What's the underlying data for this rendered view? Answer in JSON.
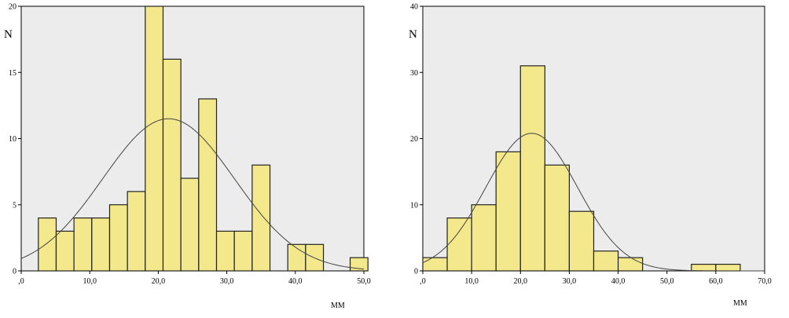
{
  "colors": {
    "bar_fill": "#f3e88c",
    "bar_stroke": "#222222",
    "plot_background": "#ececec",
    "axis": "#000000",
    "curve": "#444444"
  },
  "chart_data": [
    {
      "type": "bar",
      "ylabel": "N",
      "xlabel": "MM",
      "xlim": [
        0,
        50
      ],
      "ylim": [
        0,
        20
      ],
      "x_ticks": [
        0,
        10,
        20,
        30,
        40,
        50
      ],
      "x_tick_labels": [
        ",0",
        "10,0",
        "20,0",
        "30,0",
        "40,0",
        "50,0"
      ],
      "y_ticks": [
        0,
        5,
        10,
        15,
        20
      ],
      "y_tick_labels": [
        "0",
        "5",
        "10",
        "15",
        "20"
      ],
      "bin_width": 2.6,
      "bins": [
        {
          "start": 2.5,
          "count": 4
        },
        {
          "start": 5.1,
          "count": 3
        },
        {
          "start": 7.7,
          "count": 4
        },
        {
          "start": 10.3,
          "count": 4
        },
        {
          "start": 12.9,
          "count": 5
        },
        {
          "start": 15.5,
          "count": 6
        },
        {
          "start": 18.1,
          "count": 20
        },
        {
          "start": 20.7,
          "count": 16
        },
        {
          "start": 23.3,
          "count": 7
        },
        {
          "start": 25.9,
          "count": 13
        },
        {
          "start": 28.5,
          "count": 3
        },
        {
          "start": 31.1,
          "count": 3
        },
        {
          "start": 33.7,
          "count": 8
        },
        {
          "start": 38.9,
          "count": 2
        },
        {
          "start": 41.5,
          "count": 2
        },
        {
          "start": 48.0,
          "count": 1
        }
      ],
      "normal_curve": {
        "mean": 21.5,
        "peak": 11.5,
        "sd": 9.6
      },
      "grid": false
    },
    {
      "type": "bar",
      "ylabel": "N",
      "xlabel": "MM",
      "xlim": [
        0,
        70
      ],
      "ylim": [
        0,
        40
      ],
      "x_ticks": [
        0,
        10,
        20,
        30,
        40,
        50,
        60,
        70
      ],
      "x_tick_labels": [
        ",0",
        "10,0",
        "20,0",
        "30,0",
        "40,0",
        "50,0",
        "60,0",
        "70,0"
      ],
      "y_ticks": [
        0,
        10,
        20,
        30,
        40
      ],
      "y_tick_labels": [
        "0",
        "10",
        "20",
        "30",
        "40"
      ],
      "bin_width": 5,
      "bins": [
        {
          "start": 0,
          "count": 2
        },
        {
          "start": 5,
          "count": 8
        },
        {
          "start": 10,
          "count": 10
        },
        {
          "start": 15,
          "count": 18
        },
        {
          "start": 20,
          "count": 31
        },
        {
          "start": 25,
          "count": 16
        },
        {
          "start": 30,
          "count": 9
        },
        {
          "start": 35,
          "count": 3
        },
        {
          "start": 40,
          "count": 2
        },
        {
          "start": 55,
          "count": 1
        },
        {
          "start": 60,
          "count": 1
        }
      ],
      "normal_curve": {
        "mean": 22.3,
        "peak": 20.8,
        "sd": 9.4
      },
      "grid": false
    }
  ]
}
